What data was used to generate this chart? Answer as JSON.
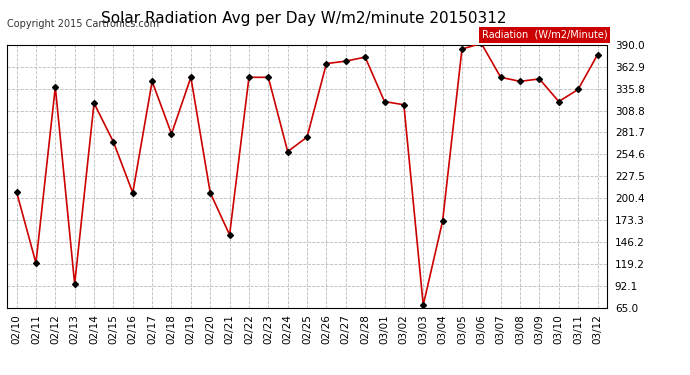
{
  "title": "Solar Radiation Avg per Day W/m2/minute 20150312",
  "copyright": "Copyright 2015 Cartronics.com",
  "legend_label": "Radiation  (W/m2/Minute)",
  "legend_bg": "#cc0000",
  "legend_text_color": "#ffffff",
  "background_color": "#ffffff",
  "plot_bg": "#ffffff",
  "line_color": "#cc0000",
  "marker_color": "#000000",
  "grid_color": "#bbbbbb",
  "ylim": [
    65.0,
    390.0
  ],
  "yticks": [
    65.0,
    92.1,
    119.2,
    146.2,
    173.3,
    200.4,
    227.5,
    254.6,
    281.7,
    308.8,
    335.8,
    362.9,
    390.0
  ],
  "dates": [
    "02/10",
    "02/11",
    "02/12",
    "02/13",
    "02/14",
    "02/15",
    "02/16",
    "02/17",
    "02/18",
    "02/19",
    "02/20",
    "02/21",
    "02/22",
    "02/23",
    "02/24",
    "02/25",
    "02/26",
    "02/27",
    "02/28",
    "03/01",
    "03/02",
    "03/03",
    "03/04",
    "03/05",
    "03/06",
    "03/07",
    "03/08",
    "03/09",
    "03/10",
    "03/11",
    "03/12"
  ],
  "values": [
    208,
    120,
    338,
    94,
    318,
    270,
    207,
    345,
    280,
    350,
    207,
    155,
    350,
    350,
    258,
    276,
    367,
    370,
    375,
    320,
    316,
    68,
    172,
    385,
    392,
    350,
    345,
    348,
    320,
    335,
    378
  ],
  "title_fontsize": 11,
  "tick_fontsize": 7.5,
  "copyright_fontsize": 7
}
